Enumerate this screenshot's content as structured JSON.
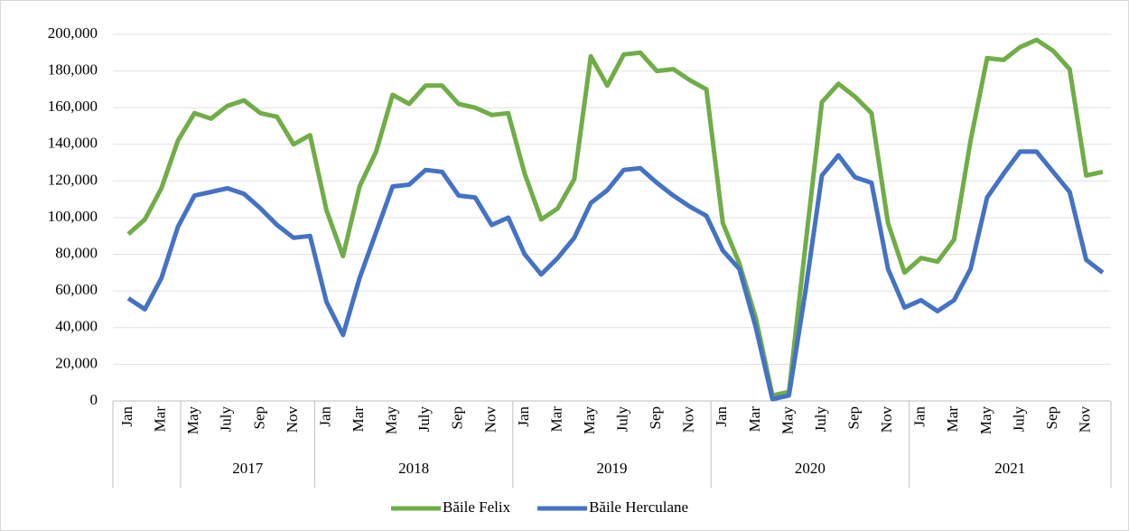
{
  "chart_data": {
    "type": "line",
    "categories": [
      "Jan",
      null,
      "Mar",
      null,
      "May",
      null,
      "July",
      null,
      "Sep",
      null,
      "Nov",
      null,
      "Jan",
      null,
      "Mar",
      null,
      "May",
      null,
      "July",
      null,
      "Sep",
      null,
      "Nov",
      null,
      "Jan",
      null,
      "Mar",
      null,
      "May",
      null,
      "July",
      null,
      "Sep",
      null,
      "Nov",
      null,
      "Jan",
      null,
      "Mar",
      null,
      "May",
      null,
      "July",
      null,
      "Sep",
      null,
      "Nov",
      null,
      "Jan",
      null,
      "Mar",
      null,
      "May",
      null,
      "July",
      null,
      "Sep",
      null,
      "Nov",
      null
    ],
    "years": [
      "2017",
      "2018",
      "2019",
      "2020",
      "2021"
    ],
    "series": [
      {
        "name": "Băile Felix",
        "color": "#70ad47",
        "values": [
          91000,
          99000,
          116000,
          142000,
          157000,
          154000,
          161000,
          164000,
          157000,
          155000,
          140000,
          145000,
          104000,
          79000,
          117000,
          136000,
          167000,
          162000,
          172000,
          172000,
          162000,
          160000,
          156000,
          157000,
          124000,
          99000,
          105000,
          121000,
          188000,
          172000,
          189000,
          190000,
          180000,
          181000,
          175000,
          170000,
          97000,
          75000,
          45000,
          3000,
          5000,
          85000,
          163000,
          173000,
          166000,
          157000,
          97000,
          70000,
          78000,
          76000,
          88000,
          142000,
          187000,
          186000,
          193000,
          197000,
          191000,
          181000,
          123000,
          125000
        ]
      },
      {
        "name": "Băile Herculane",
        "color": "#4472c4",
        "values": [
          56000,
          50000,
          67000,
          95000,
          112000,
          114000,
          116000,
          113000,
          105000,
          96000,
          89000,
          90000,
          54000,
          36000,
          67000,
          92000,
          117000,
          118000,
          126000,
          125000,
          112000,
          111000,
          96000,
          100000,
          80000,
          69000,
          78000,
          89000,
          108000,
          115000,
          126000,
          127000,
          119000,
          112000,
          106000,
          101000,
          82000,
          72000,
          40000,
          1000,
          3000,
          60000,
          123000,
          134000,
          122000,
          119000,
          72000,
          51000,
          55000,
          49000,
          55000,
          72000,
          111000,
          124000,
          136000,
          136000,
          125000,
          114000,
          77000,
          70000
        ]
      }
    ],
    "ylim": [
      0,
      200000
    ],
    "yticks": [
      0,
      {
        "value": 20000,
        "label": "20,000"
      },
      {
        "value": 40000,
        "label": "40,000"
      },
      {
        "value": 60000,
        "label": "60,000"
      },
      {
        "value": 80000,
        "label": "80,000"
      },
      {
        "value": 100000,
        "label": "100,000"
      },
      {
        "value": 120000,
        "label": "120,000"
      },
      {
        "value": 140000,
        "label": "140,000"
      },
      {
        "value": 160000,
        "label": "160,000"
      },
      {
        "value": 180000,
        "label": "180,000"
      },
      {
        "value": 200000,
        "label": "200,000"
      }
    ],
    "grid": true,
    "legend": "bottom"
  }
}
